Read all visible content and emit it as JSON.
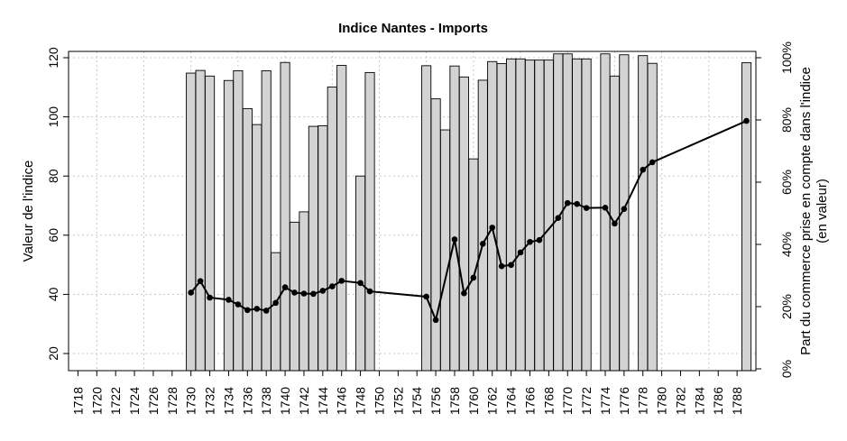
{
  "chart_data": {
    "type": "bar+line",
    "title": "Indice Nantes - Imports",
    "ylabel_left": "Valeur de l'indice",
    "ylabel_right_line1": "Part du commerce prise en compte dans l'indice",
    "ylabel_right_line2": "(en valeur)",
    "x_range": [
      1717,
      1790
    ],
    "ylim_left": [
      14,
      122
    ],
    "ylim_right": [
      0,
      1.0
    ],
    "left_ticks": [
      20,
      40,
      60,
      80,
      100,
      120
    ],
    "right_ticks": [
      "0%",
      "20%",
      "40%",
      "60%",
      "80%",
      "100%"
    ],
    "right_tick_values": [
      0,
      0.2,
      0.4,
      0.6,
      0.8,
      1.0
    ],
    "x_tick_labels": [
      "1718",
      "1720",
      "1722",
      "1724",
      "1726",
      "1728",
      "1730",
      "1732",
      "1734",
      "1736",
      "1738",
      "1740",
      "1742",
      "1744",
      "1746",
      "1748",
      "1750",
      "1752",
      "1754",
      "1756",
      "1758",
      "1760",
      "1762",
      "1764",
      "1766",
      "1768",
      "1770",
      "1772",
      "1774",
      "1776",
      "1778",
      "1780",
      "1782",
      "1784",
      "1786",
      "1788"
    ],
    "grid": true,
    "bars": {
      "name": "Valeur de l'indice",
      "x": [
        1730,
        1731,
        1732,
        1734,
        1735,
        1736,
        1737,
        1738,
        1739,
        1740,
        1741,
        1742,
        1743,
        1744,
        1745,
        1746,
        1748,
        1749,
        1755,
        1756,
        1757,
        1758,
        1759,
        1760,
        1761,
        1762,
        1763,
        1764,
        1765,
        1766,
        1767,
        1768,
        1769,
        1770,
        1771,
        1772,
        1774,
        1775,
        1776,
        1778,
        1779,
        1789
      ],
      "values": [
        114.8,
        115.7,
        113.8,
        112.3,
        115.6,
        102.8,
        97.4,
        115.6,
        54.1,
        118.4,
        64.4,
        67.9,
        96.8,
        97.0,
        110.1,
        117.4,
        80.0,
        115.0,
        117.3,
        106.1,
        95.6,
        117.2,
        113.5,
        85.8,
        112.4,
        118.7,
        118.0,
        119.6,
        119.6,
        119.2,
        119.2,
        119.2,
        121.3,
        121.3,
        119.6,
        119.6,
        121.3,
        113.8,
        121.0,
        120.7,
        118.1,
        118.3
      ]
    },
    "line": {
      "name": "Part du commerce prise en compte dans l'indice",
      "x": [
        1730,
        1731,
        1732,
        1734,
        1735,
        1736,
        1737,
        1738,
        1739,
        1740,
        1741,
        1742,
        1743,
        1744,
        1745,
        1746,
        1748,
        1749,
        1755,
        1756,
        1758,
        1759,
        1760,
        1761,
        1762,
        1763,
        1764,
        1765,
        1766,
        1767,
        1769,
        1770,
        1771,
        1772,
        1774,
        1775,
        1776,
        1778,
        1779,
        1789
      ],
      "values": [
        0.245,
        0.282,
        0.229,
        0.222,
        0.207,
        0.189,
        0.193,
        0.187,
        0.212,
        0.262,
        0.245,
        0.242,
        0.241,
        0.251,
        0.265,
        0.283,
        0.276,
        0.249,
        0.232,
        0.157,
        0.416,
        0.243,
        0.293,
        0.402,
        0.454,
        0.33,
        0.334,
        0.374,
        0.408,
        0.414,
        0.485,
        0.533,
        0.53,
        0.517,
        0.518,
        0.467,
        0.514,
        0.64,
        0.664,
        0.797
      ]
    }
  }
}
